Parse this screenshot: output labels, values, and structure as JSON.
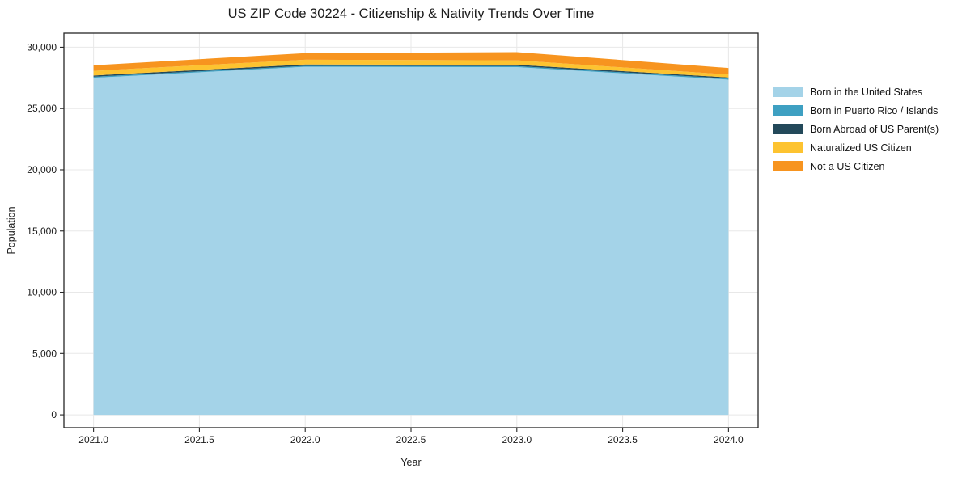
{
  "title": "US ZIP Code 30224 - Citizenship & Nativity Trends Over Time",
  "chart_data": {
    "type": "area",
    "stacked": true,
    "title": "US ZIP Code 30224 - Citizenship & Nativity Trends Over Time",
    "xlabel": "Year",
    "ylabel": "Population",
    "x": [
      2021,
      2022,
      2023,
      2024
    ],
    "series": [
      {
        "name": "Born in the United States",
        "color": "#a4d3e8",
        "values": [
          27510,
          28400,
          28380,
          27360
        ]
      },
      {
        "name": "Born in Puerto Rico / Islands",
        "color": "#3ea0c2",
        "values": [
          85,
          80,
          80,
          85
        ]
      },
      {
        "name": "Born Abroad of US Parent(s)",
        "color": "#23495a",
        "values": [
          100,
          110,
          110,
          90
        ]
      },
      {
        "name": "Naturalized US Citizen",
        "color": "#fdc330",
        "values": [
          380,
          390,
          360,
          240
        ]
      },
      {
        "name": "Not a US Citizen",
        "color": "#f7941f",
        "values": [
          450,
          540,
          670,
          530
        ]
      }
    ],
    "xlim": [
      2020.86,
      2024.14
    ],
    "ylim": [
      -1050,
      31150
    ],
    "xticks": {
      "values": [
        2021.0,
        2021.5,
        2022.0,
        2022.5,
        2023.0,
        2023.5,
        2024.0
      ],
      "labels": [
        "2021.0",
        "2021.5",
        "2022.0",
        "2022.5",
        "2023.0",
        "2023.5",
        "2024.0"
      ]
    },
    "yticks": {
      "values": [
        0,
        5000,
        10000,
        15000,
        20000,
        25000,
        30000
      ],
      "labels": [
        "0",
        "5,000",
        "10,000",
        "15,000",
        "20,000",
        "25,000",
        "30,000"
      ]
    },
    "grid": true,
    "legend_position": "right-outside"
  },
  "colors": {
    "background": "#ffffff",
    "grid": "#e8e8e8",
    "spine": "#262626",
    "text": "#1a1a1a"
  }
}
